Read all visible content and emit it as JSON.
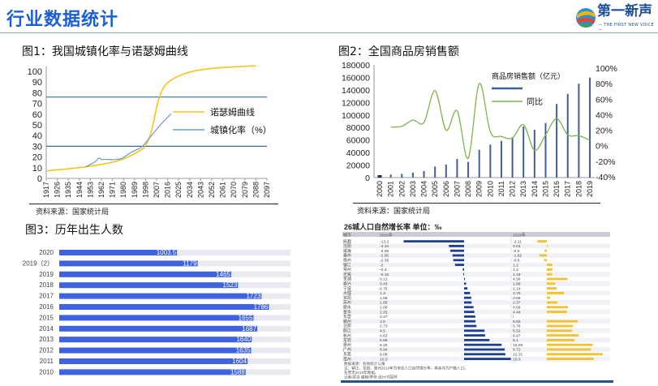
{
  "header": {
    "title": "行业数据统计",
    "logo_text": "第一新声",
    "logo_sub": "— THE FIRST NEW VOICE —"
  },
  "colors": {
    "title_blue": "#1a5fd8",
    "northam": "#f5c518",
    "urban": "#6b9bd6",
    "ref_line": "#3a6a93",
    "bar_blue": "#3f5f99",
    "yoy_green": "#7fb34a",
    "birth_bar": "#3f63e0",
    "birth_track": "#e8eaf0",
    "table_blue": "#1e3f8f",
    "table_yellow": "#f2c12e"
  },
  "fig1": {
    "title": "图1：我国城镇化率与诺瑟姆曲线",
    "source": "资料来源：国家统计局",
    "chart_data": {
      "type": "line",
      "x_ticks": [
        1917,
        1926,
        1935,
        1944,
        1953,
        1962,
        1971,
        1980,
        1989,
        1998,
        2007,
        2016,
        2025,
        2034,
        2043,
        2052,
        2061,
        2070,
        2079,
        2088,
        2097
      ],
      "y_ticks": [
        0,
        10,
        20,
        30,
        40,
        50,
        60,
        70,
        80,
        90,
        100
      ],
      "xlim": [
        1917,
        2097
      ],
      "ylim": [
        0,
        100
      ],
      "reference_lines": [
        76,
        30
      ],
      "series": [
        {
          "name": "诺瑟姆曲线",
          "x": [
            1917,
            1926,
            1935,
            1944,
            1953,
            1962,
            1971,
            1980,
            1989,
            1995,
            1998,
            2002,
            2005,
            2008,
            2012,
            2016,
            2025,
            2034,
            2043,
            2052,
            2061,
            2070,
            2079,
            2088
          ],
          "y": [
            7,
            8,
            9,
            10,
            11.5,
            13,
            15,
            18,
            23,
            27,
            30,
            40,
            55,
            72,
            84,
            90,
            96,
            99.5,
            101.5,
            102.8,
            103.6,
            104.2,
            104.7,
            105.2
          ]
        },
        {
          "name": "城镇化率（%）",
          "x": [
            1949,
            1953,
            1957,
            1960,
            1962,
            1965,
            1970,
            1978,
            1982,
            1985,
            1990,
            1995,
            2000,
            2005,
            2010,
            2015,
            2019
          ],
          "y": [
            10.6,
            13,
            15.4,
            19.7,
            17.3,
            18,
            17.4,
            17.9,
            21,
            23.7,
            26.4,
            29,
            36.2,
            43,
            50,
            56,
            60.6
          ]
        }
      ]
    }
  },
  "fig2": {
    "title": "图2：全国商品房销售额",
    "source": "资料来源：国家统计局",
    "chart_data": {
      "type": "bar+line",
      "categories": [
        "2000",
        "2001",
        "2002",
        "2003",
        "2004",
        "2005",
        "2006",
        "2007",
        "2008",
        "2009",
        "2010",
        "2011",
        "2012",
        "2013",
        "2014",
        "2015",
        "2016",
        "2017",
        "2018",
        "2019"
      ],
      "left_ticks": [
        "0",
        "20000",
        "40000",
        "60000",
        "80000",
        "100000",
        "120000",
        "140000",
        "160000",
        "180000"
      ],
      "right_ticks": [
        "-40%",
        "-20%",
        "0%",
        "20%",
        "40%",
        "60%",
        "80%",
        "100%"
      ],
      "ylim_left": [
        0,
        180000
      ],
      "ylim_right": [
        -40,
        100
      ],
      "series": [
        {
          "name": "商品房销售额（亿元）",
          "type": "bar",
          "values": [
            3935,
            4863,
            6032,
            7956,
            10376,
            17576,
            20826,
            29889,
            25068,
            44355,
            52721,
            58589,
            64456,
            81428,
            76292,
            87281,
            117627,
            133701,
            149973,
            159725
          ]
        },
        {
          "name": "同比",
          "type": "line",
          "values": [
            null,
            24,
            25,
            33,
            30,
            71,
            20,
            45,
            -16,
            80,
            18,
            12,
            10,
            27,
            -6,
            14,
            35,
            14,
            13,
            7
          ]
        }
      ]
    }
  },
  "fig3": {
    "title": "图3：历年出生人数",
    "chart_data": {
      "type": "bar",
      "orientation": "horizontal",
      "categories": [
        "2020",
        "2019（2）",
        "2019",
        "2018",
        "2017",
        "2016",
        "2015",
        "2014",
        "2013",
        "2012",
        "2011",
        "2010"
      ],
      "values": [
        1003.5,
        1179,
        1465,
        1523,
        1723,
        1786,
        1655,
        1687,
        1640,
        1635,
        1604,
        1588
      ],
      "labels": [
        "1003.5",
        "1179",
        "1465",
        "1523",
        "1723",
        "1786",
        "1655",
        "1687",
        "1640",
        "1635",
        "1604",
        "1588"
      ],
      "xlim": [
        0,
        1970
      ]
    }
  },
  "fig4": {
    "title": "26城人口自然增长率  单位：‰",
    "col_city": "城市",
    "col_2020": "2020年",
    "col_2019": "2019年",
    "chart_data": {
      "type": "table",
      "rows": [
        {
          "city": "抚顺",
          "v2020": "-13.3",
          "v2019": "-2.11"
        },
        {
          "city": "沈阳",
          "v2020": "-3.34",
          "v2019": "0.04"
        },
        {
          "city": "威海",
          "v2020": "-3.05",
          "v2019": "-0.5"
        },
        {
          "city": "泰州",
          "v2020": "-2.56",
          "v2019": "-1.62"
        },
        {
          "city": "扬州",
          "v2020": "-2.39",
          "v2019": "-0.6"
        },
        {
          "city": "镇江",
          "v2020": "-2",
          "v2019": "1.2"
        },
        {
          "city": "常州",
          "v2020": "-0.3",
          "v2019": "1.2"
        },
        {
          "city": "无锡",
          "v2020": "-0.16",
          "v2019": "1.18"
        },
        {
          "city": "芜湖",
          "v2020": "0.12",
          "v2019": "4.56"
        },
        {
          "city": "嘉兴",
          "v2020": "0.43",
          "v2019": "1.86"
        },
        {
          "city": "宁波",
          "v2020": "0.75",
          "v2019": "2.14"
        },
        {
          "city": "大理",
          "v2020": "1.3",
          "v2019": "3.76"
        },
        {
          "city": "资阳",
          "v2020": "1.58",
          "v2019": "0.69"
        },
        {
          "city": "苏州",
          "v2020": "1.65",
          "v2019": "2.37"
        },
        {
          "city": "丽水",
          "v2020": "2.08",
          "v2019": "4.66"
        },
        {
          "city": "金华",
          "v2020": "2.25",
          "v2019": "4.44"
        },
        {
          "city": "东营",
          "v2020": "2.47",
          "v2019": "/"
        },
        {
          "city": "赣州",
          "v2020": "2.5",
          "v2019": "6.82"
        },
        {
          "city": "日照",
          "v2020": "2.73",
          "v2019": "5.78"
        },
        {
          "city": "阳江",
          "v2020": "4.5",
          "v2019": "5.52"
        },
        {
          "city": "杭州",
          "v2020": "4.63",
          "v2019": "6.97"
        },
        {
          "city": "龙岩",
          "v2020": "5.58",
          "v2019": "6.1"
        },
        {
          "city": "惠州",
          "v2020": "8.26",
          "v2019": "10.09"
        },
        {
          "city": "广州",
          "v2020": "8.94",
          "v2019": "9.72"
        },
        {
          "city": "东莞",
          "v2020": "9.08",
          "v2019": "12.31"
        },
        {
          "city": "亳州",
          "v2020": "10.3",
          "v2019": "10.3"
        }
      ]
    },
    "notes": [
      "数据来源：各地统计公报",
      "注：镇江、龙岩、惠州2019年为常住人口自然增长率，其余均为户籍人口。",
      "东营无2019年数据。",
      "记者/梁洁  编辑/李琦  设计/邓丽轩"
    ]
  }
}
